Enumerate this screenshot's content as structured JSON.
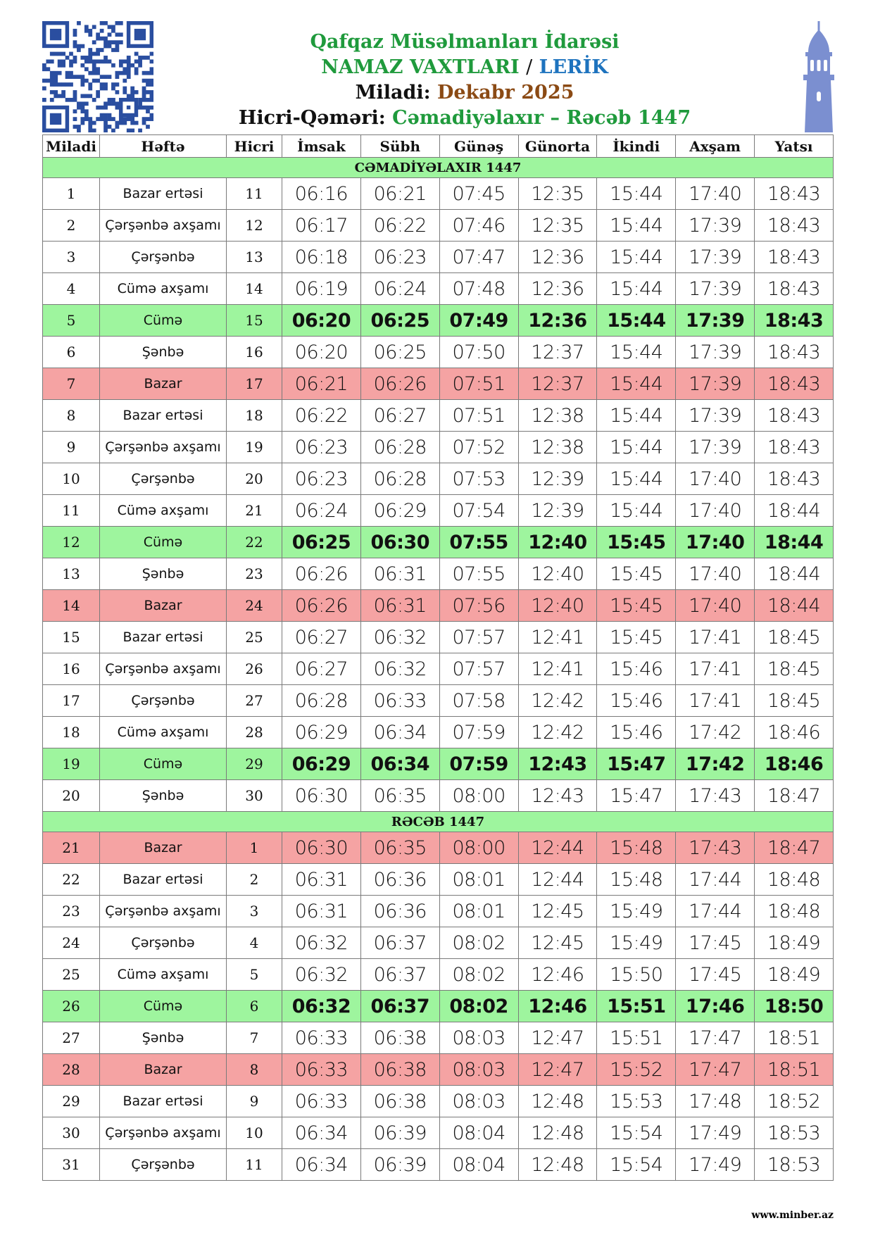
{
  "header": {
    "line1": "Qafqaz Müsəlmanları İdarəsi",
    "title": "NAMAZ VAXTLARI",
    "separator": "/",
    "city": "LERİK",
    "miladi_label": "Miladi:",
    "miladi_value": "Dekabr 2025",
    "hicri_label": "Hicri-Qəməri:",
    "hicri_value": "Cəmadiyəlaxır – Rəcəb 1447"
  },
  "table": {
    "columns": [
      "Miladi",
      "Həftə",
      "Hicri",
      "İmsak",
      "Sübh",
      "Günəş",
      "Günorta",
      "İkindi",
      "Axşam",
      "Yatsı"
    ],
    "section_color": "#9ef59e",
    "sections": [
      {
        "title": "CƏMADİYƏLAXIR 1447",
        "rows": [
          {
            "cells": [
              "1",
              "Bazar ertəsi",
              "11",
              "06:16",
              "06:21",
              "07:45",
              "12:35",
              "15:44",
              "17:40",
              "18:43"
            ]
          },
          {
            "cells": [
              "2",
              "Çərşənbə axşamı",
              "12",
              "06:17",
              "06:22",
              "07:46",
              "12:35",
              "15:44",
              "17:39",
              "18:43"
            ]
          },
          {
            "cells": [
              "3",
              "Çərşənbə",
              "13",
              "06:18",
              "06:23",
              "07:47",
              "12:36",
              "15:44",
              "17:39",
              "18:43"
            ]
          },
          {
            "cells": [
              "4",
              "Cümə axşamı",
              "14",
              "06:19",
              "06:24",
              "07:48",
              "12:36",
              "15:44",
              "17:39",
              "18:43"
            ]
          },
          {
            "cells": [
              "5",
              "Cümə",
              "15",
              "06:20",
              "06:25",
              "07:49",
              "12:36",
              "15:44",
              "17:39",
              "18:43"
            ],
            "color": "#9ef59e",
            "bold": true
          },
          {
            "cells": [
              "6",
              "Şənbə",
              "16",
              "06:20",
              "06:25",
              "07:50",
              "12:37",
              "15:44",
              "17:39",
              "18:43"
            ]
          },
          {
            "cells": [
              "7",
              "Bazar",
              "17",
              "06:21",
              "06:26",
              "07:51",
              "12:37",
              "15:44",
              "17:39",
              "18:43"
            ],
            "color": "#f5a3a3"
          },
          {
            "cells": [
              "8",
              "Bazar ertəsi",
              "18",
              "06:22",
              "06:27",
              "07:51",
              "12:38",
              "15:44",
              "17:39",
              "18:43"
            ]
          },
          {
            "cells": [
              "9",
              "Çərşənbə axşamı",
              "19",
              "06:23",
              "06:28",
              "07:52",
              "12:38",
              "15:44",
              "17:39",
              "18:43"
            ]
          },
          {
            "cells": [
              "10",
              "Çərşənbə",
              "20",
              "06:23",
              "06:28",
              "07:53",
              "12:39",
              "15:44",
              "17:40",
              "18:43"
            ]
          },
          {
            "cells": [
              "11",
              "Cümə axşamı",
              "21",
              "06:24",
              "06:29",
              "07:54",
              "12:39",
              "15:44",
              "17:40",
              "18:44"
            ]
          },
          {
            "cells": [
              "12",
              "Cümə",
              "22",
              "06:25",
              "06:30",
              "07:55",
              "12:40",
              "15:45",
              "17:40",
              "18:44"
            ],
            "color": "#9ef59e",
            "bold": true
          },
          {
            "cells": [
              "13",
              "Şənbə",
              "23",
              "06:26",
              "06:31",
              "07:55",
              "12:40",
              "15:45",
              "17:40",
              "18:44"
            ]
          },
          {
            "cells": [
              "14",
              "Bazar",
              "24",
              "06:26",
              "06:31",
              "07:56",
              "12:40",
              "15:45",
              "17:40",
              "18:44"
            ],
            "color": "#f5a3a3"
          },
          {
            "cells": [
              "15",
              "Bazar ertəsi",
              "25",
              "06:27",
              "06:32",
              "07:57",
              "12:41",
              "15:45",
              "17:41",
              "18:45"
            ]
          },
          {
            "cells": [
              "16",
              "Çərşənbə axşamı",
              "26",
              "06:27",
              "06:32",
              "07:57",
              "12:41",
              "15:46",
              "17:41",
              "18:45"
            ]
          },
          {
            "cells": [
              "17",
              "Çərşənbə",
              "27",
              "06:28",
              "06:33",
              "07:58",
              "12:42",
              "15:46",
              "17:41",
              "18:45"
            ]
          },
          {
            "cells": [
              "18",
              "Cümə axşamı",
              "28",
              "06:29",
              "06:34",
              "07:59",
              "12:42",
              "15:46",
              "17:42",
              "18:46"
            ]
          },
          {
            "cells": [
              "19",
              "Cümə",
              "29",
              "06:29",
              "06:34",
              "07:59",
              "12:43",
              "15:47",
              "17:42",
              "18:46"
            ],
            "color": "#9ef59e",
            "bold": true
          },
          {
            "cells": [
              "20",
              "Şənbə",
              "30",
              "06:30",
              "06:35",
              "08:00",
              "12:43",
              "15:47",
              "17:43",
              "18:47"
            ]
          }
        ]
      },
      {
        "title": "RƏCƏB 1447",
        "rows": [
          {
            "cells": [
              "21",
              "Bazar",
              "1",
              "06:30",
              "06:35",
              "08:00",
              "12:44",
              "15:48",
              "17:43",
              "18:47"
            ],
            "color": "#f5a3a3"
          },
          {
            "cells": [
              "22",
              "Bazar ertəsi",
              "2",
              "06:31",
              "06:36",
              "08:01",
              "12:44",
              "15:48",
              "17:44",
              "18:48"
            ]
          },
          {
            "cells": [
              "23",
              "Çərşənbə axşamı",
              "3",
              "06:31",
              "06:36",
              "08:01",
              "12:45",
              "15:49",
              "17:44",
              "18:48"
            ]
          },
          {
            "cells": [
              "24",
              "Çərşənbə",
              "4",
              "06:32",
              "06:37",
              "08:02",
              "12:45",
              "15:49",
              "17:45",
              "18:49"
            ]
          },
          {
            "cells": [
              "25",
              "Cümə axşamı",
              "5",
              "06:32",
              "06:37",
              "08:02",
              "12:46",
              "15:50",
              "17:45",
              "18:49"
            ]
          },
          {
            "cells": [
              "26",
              "Cümə",
              "6",
              "06:32",
              "06:37",
              "08:02",
              "12:46",
              "15:51",
              "17:46",
              "18:50"
            ],
            "color": "#9ef59e",
            "bold": true
          },
          {
            "cells": [
              "27",
              "Şənbə",
              "7",
              "06:33",
              "06:38",
              "08:03",
              "12:47",
              "15:51",
              "17:47",
              "18:51"
            ]
          },
          {
            "cells": [
              "28",
              "Bazar",
              "8",
              "06:33",
              "06:38",
              "08:03",
              "12:47",
              "15:52",
              "17:47",
              "18:51"
            ],
            "color": "#f5a3a3"
          },
          {
            "cells": [
              "29",
              "Bazar ertəsi",
              "9",
              "06:33",
              "06:38",
              "08:03",
              "12:48",
              "15:53",
              "17:48",
              "18:52"
            ]
          },
          {
            "cells": [
              "30",
              "Çərşənbə axşamı",
              "10",
              "06:34",
              "06:39",
              "08:04",
              "12:48",
              "15:54",
              "17:49",
              "18:53"
            ]
          },
          {
            "cells": [
              "31",
              "Çərşənbə",
              "11",
              "06:34",
              "06:39",
              "08:04",
              "12:48",
              "15:54",
              "17:49",
              "18:53"
            ]
          }
        ]
      }
    ]
  },
  "footer": "www.minber.az"
}
